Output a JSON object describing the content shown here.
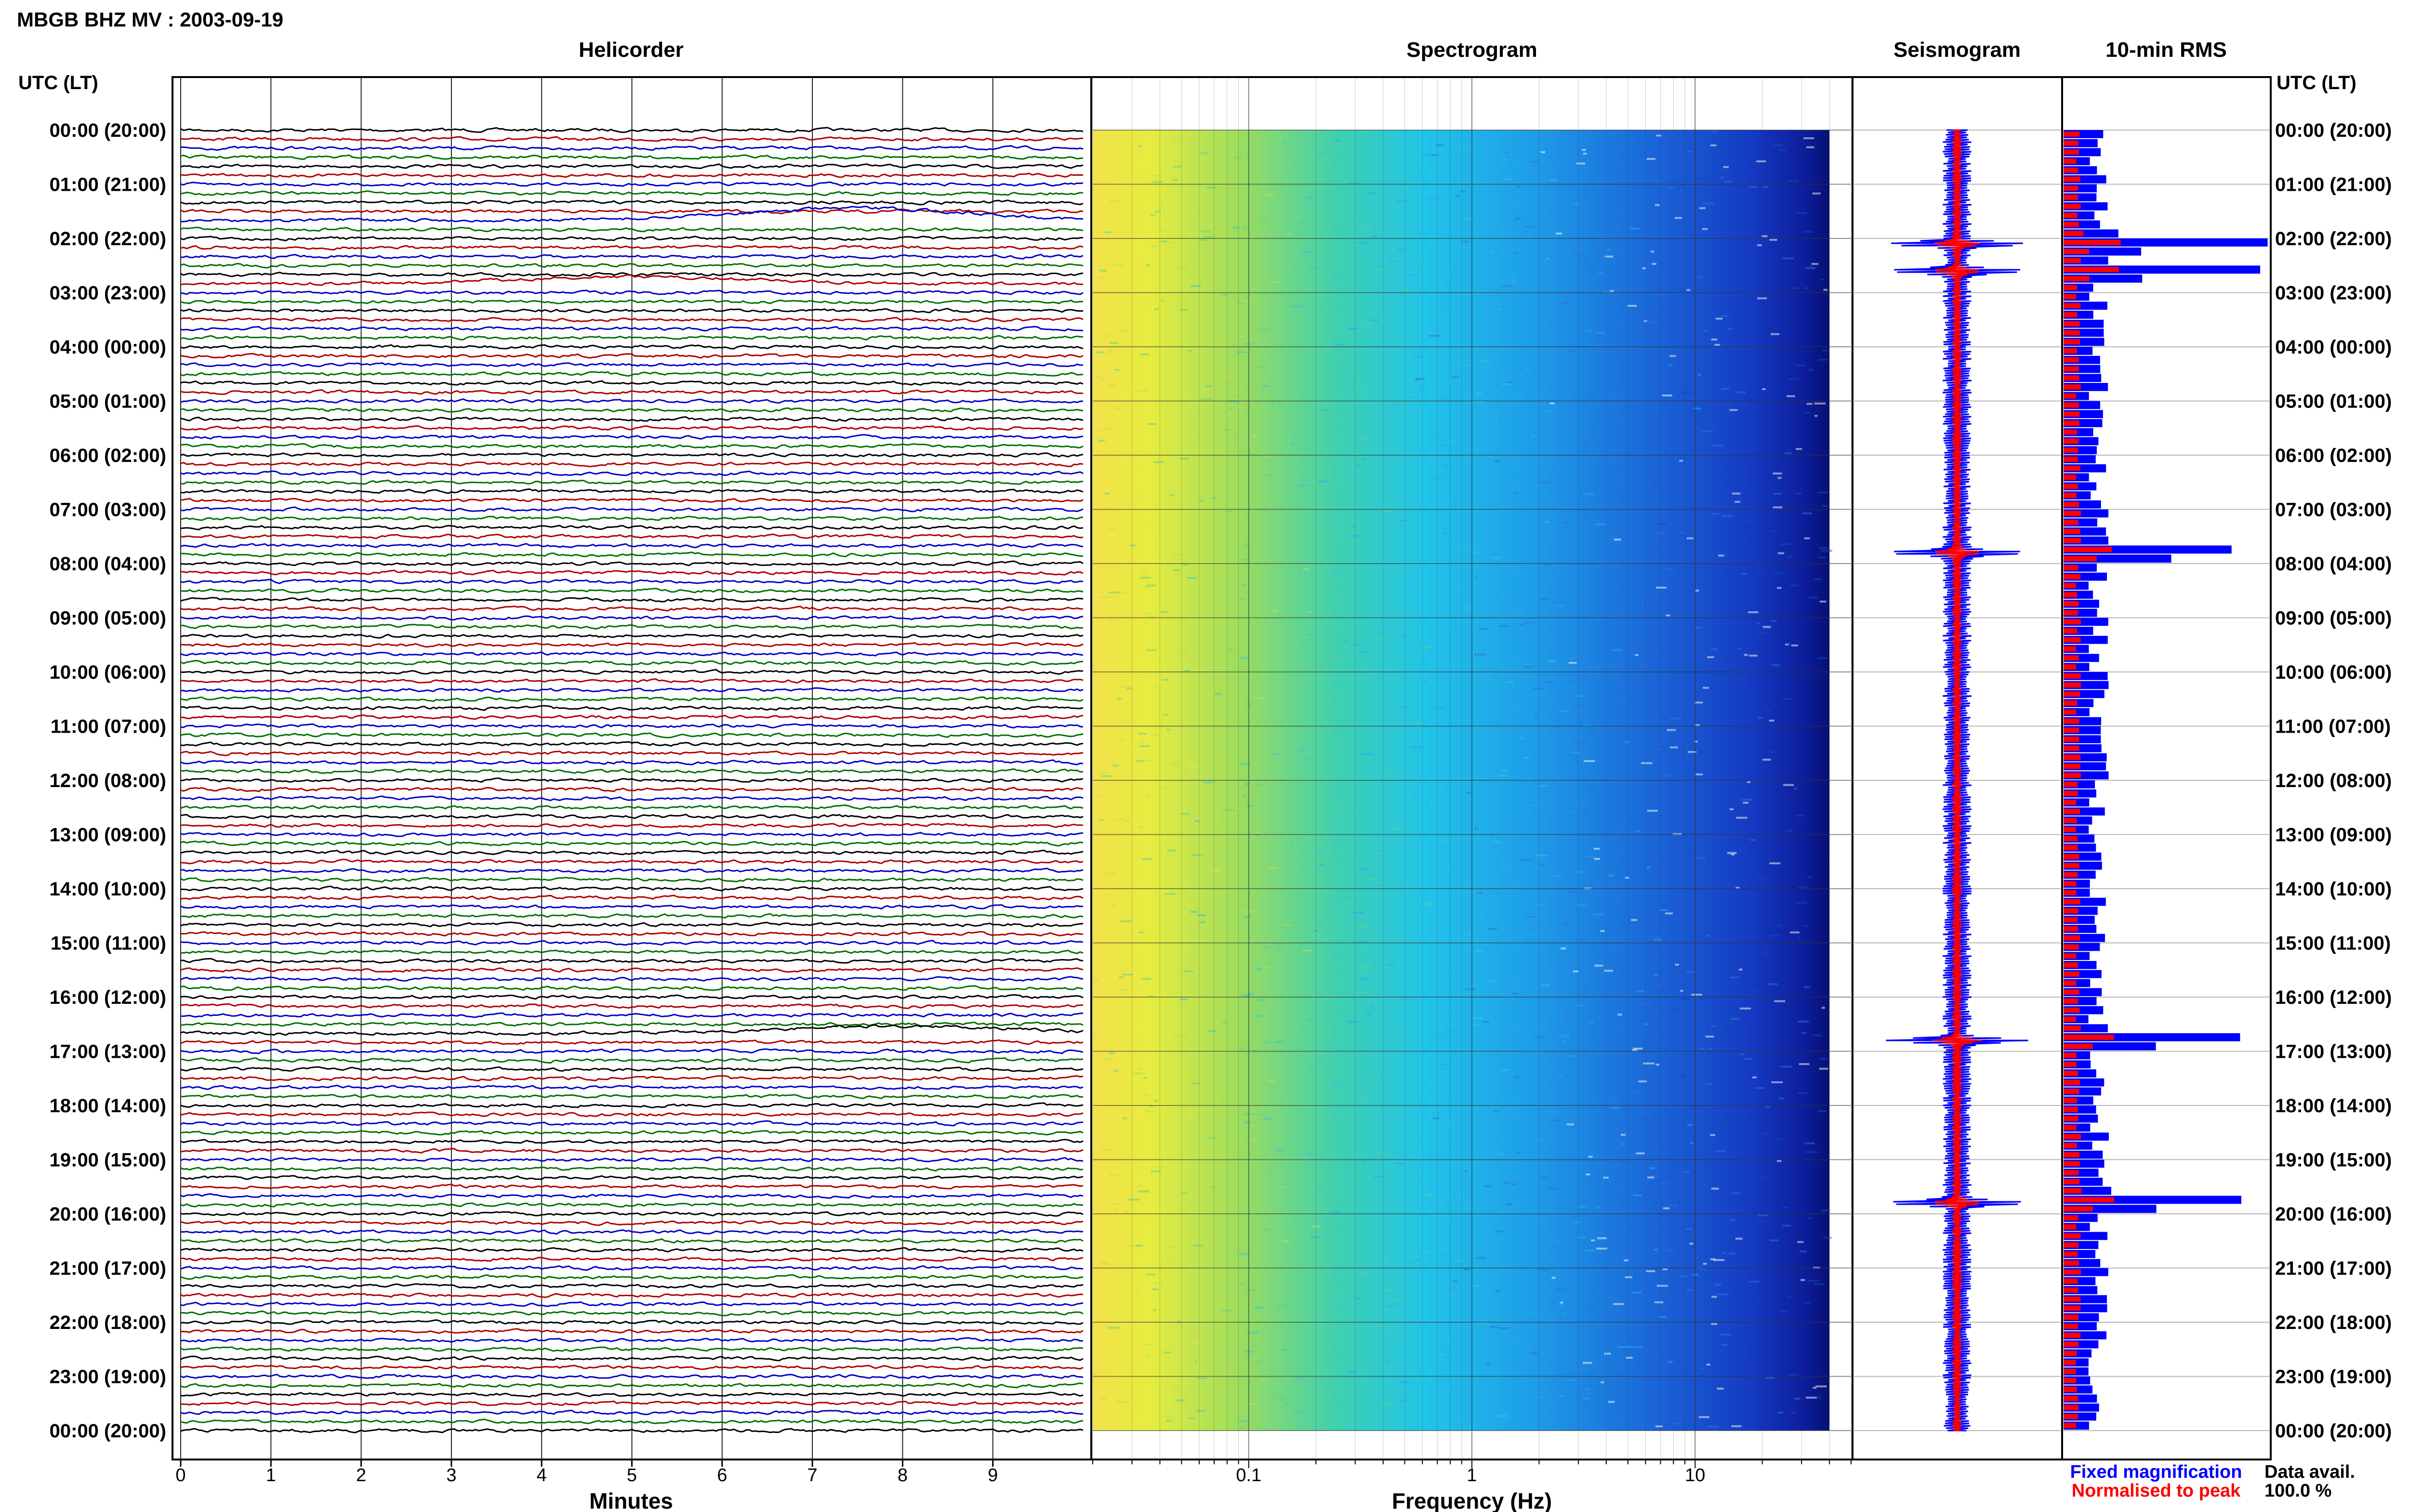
{
  "chart_data": {
    "type": "heatmap",
    "title": "MBGB BHZ MV : 2003-09-19",
    "time_axis": {
      "label": "UTC (LT)",
      "ticks": [
        "00:00 (20:00)",
        "01:00 (21:00)",
        "02:00 (22:00)",
        "03:00 (23:00)",
        "04:00 (00:00)",
        "05:00 (01:00)",
        "06:00 (02:00)",
        "07:00 (03:00)",
        "08:00 (04:00)",
        "09:00 (05:00)",
        "10:00 (06:00)",
        "11:00 (07:00)",
        "12:00 (08:00)",
        "13:00 (09:00)",
        "14:00 (10:00)",
        "15:00 (11:00)",
        "16:00 (12:00)",
        "17:00 (13:00)",
        "18:00 (14:00)",
        "19:00 (15:00)",
        "20:00 (16:00)",
        "21:00 (17:00)",
        "22:00 (18:00)",
        "23:00 (19:00)",
        "00:00 (20:00)"
      ]
    },
    "panels": {
      "helicorder": {
        "title": "Helicorder",
        "xlabel": "Minutes",
        "xticks": [
          "0",
          "1",
          "2",
          "3",
          "4",
          "5",
          "6",
          "7",
          "8",
          "9"
        ],
        "xlim": [
          0,
          10
        ],
        "lines_per_hour": 6,
        "trace_colors": [
          "#000000",
          "#b00000",
          "#0000c8",
          "#007000"
        ]
      },
      "spectrogram": {
        "title": "Spectrogram",
        "xlabel": "Frequency (Hz)",
        "xscale": "log",
        "xticks": [
          "0.1",
          "1",
          "10"
        ],
        "xlim": [
          0.02,
          50
        ],
        "max_freq": 40
      },
      "seismogram": {
        "title": "Seismogram"
      },
      "rms": {
        "title": "10-min RMS",
        "legend": [
          "Fixed magnification",
          "Normalised to peak"
        ],
        "legend_colors": [
          "#0000ff",
          "#ff0000"
        ],
        "events_hours": [
          2.1,
          2.6,
          7.8,
          16.8,
          19.8
        ]
      }
    },
    "data_availability": {
      "label": "Data avail.",
      "value": "100.0 %"
    }
  }
}
